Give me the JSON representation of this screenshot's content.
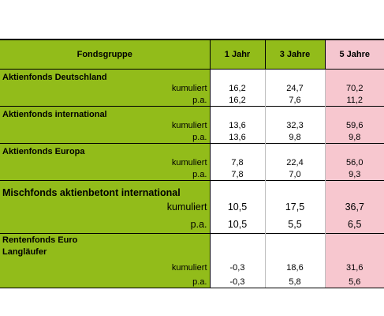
{
  "header": {
    "col0": "Fondsgruppe",
    "col1": "1 Jahr",
    "col2": "3 Jahre",
    "col3": "5 Jahre"
  },
  "groups": [
    {
      "name": "Aktienfonds Deutschland",
      "rows": [
        {
          "label": "kumuliert",
          "y1": "16,2",
          "y3": "24,7",
          "y5": "70,2"
        },
        {
          "label": "p.a.",
          "y1": "16,2",
          "y3": "7,6",
          "y5": "11,2"
        }
      ]
    },
    {
      "name": "Aktienfonds international",
      "rows": [
        {
          "label": "kumuliert",
          "y1": "13,6",
          "y3": "32,3",
          "y5": "59,6"
        },
        {
          "label": "p.a.",
          "y1": "13,6",
          "y3": "9,8",
          "y5": "9,8"
        }
      ]
    },
    {
      "name": "Aktienfonds Europa",
      "rows": [
        {
          "label": "kumuliert",
          "y1": "7,8",
          "y3": "22,4",
          "y5": "56,0"
        },
        {
          "label": "p.a.",
          "y1": "7,8",
          "y3": "7,0",
          "y5": "9,3"
        }
      ]
    },
    {
      "name": "Mischfonds aktienbetont international",
      "rows": [
        {
          "label": "kumuliert",
          "y1": "10,5",
          "y3": "17,5",
          "y5": "36,7"
        },
        {
          "label": "p.a.",
          "y1": "10,5",
          "y3": "5,5",
          "y5": "6,5"
        }
      ]
    },
    {
      "name_line1": "Rentenfonds Euro",
      "name_line2": "Langläufer",
      "rows": [
        {
          "label": "kumuliert",
          "y1": "-0,3",
          "y3": "18,6",
          "y5": "31,6"
        },
        {
          "label": "p.a.",
          "y1": "-0,3",
          "y3": "5,8",
          "y5": "5,6"
        }
      ]
    }
  ],
  "colors": {
    "green": "#92bc1a",
    "pink": "#f7c7cf"
  }
}
